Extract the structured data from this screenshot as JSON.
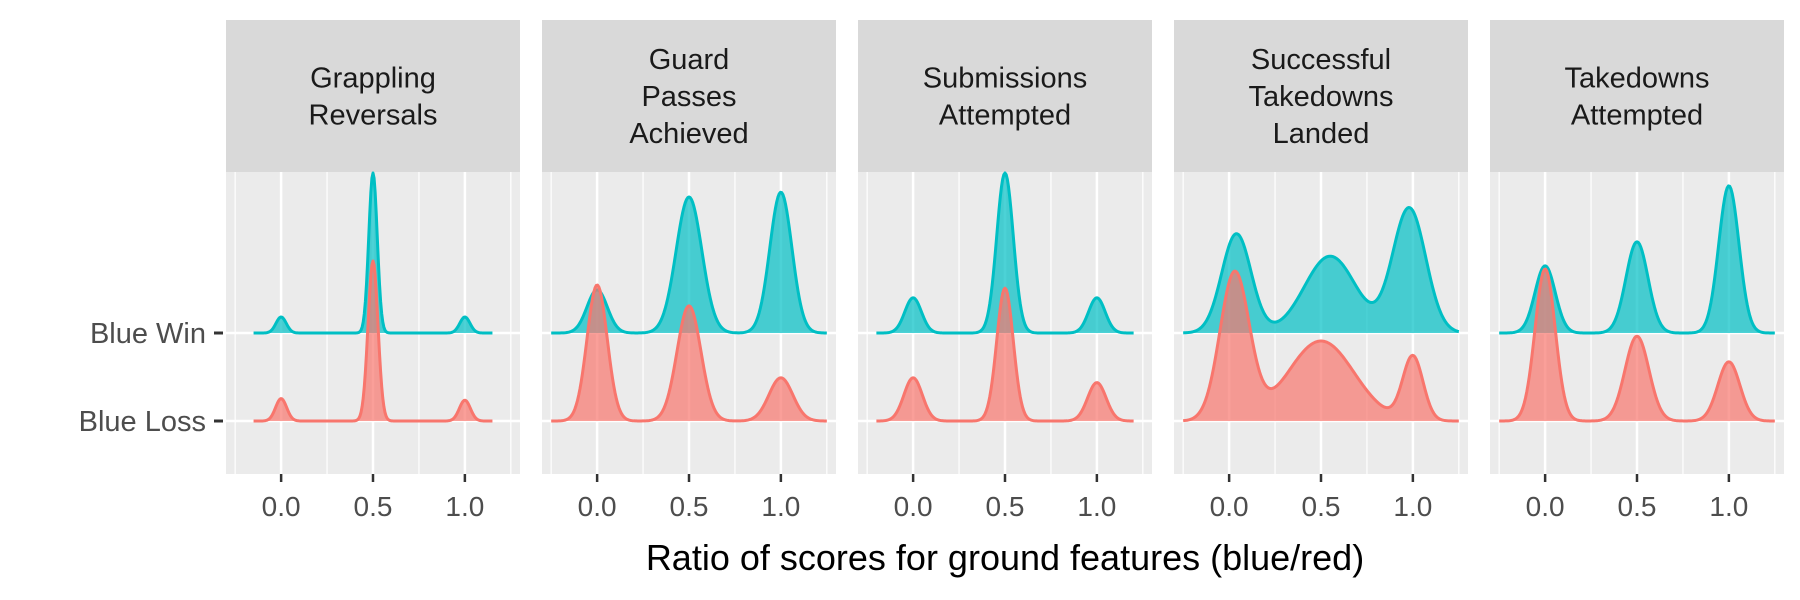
{
  "chart_data": {
    "type": "ridgeline",
    "xlabel": "Ratio of scores for ground features (blue/red)",
    "ylabel": "",
    "xlim": [
      -0.3,
      1.3
    ],
    "xticks": [
      0.0,
      0.5,
      1.0
    ],
    "xtick_labels": [
      "0.0",
      "0.5",
      "1.0"
    ],
    "rows": [
      "Blue Win",
      "Blue Loss"
    ],
    "colors": {
      "Blue Win": "#00BFC4",
      "Blue Loss": "#F8766D"
    },
    "grid": true,
    "legend": "none",
    "panels": [
      {
        "title": "Grappling\nReversals",
        "range": [
          -0.15,
          1.15
        ],
        "series": [
          {
            "name": "Blue Win",
            "components": [
              [
                0.0,
                0.028,
                0.1
              ],
              [
                0.5,
                0.023,
                1.0
              ],
              [
                1.0,
                0.028,
                0.1
              ]
            ]
          },
          {
            "name": "Blue Loss",
            "components": [
              [
                0.0,
                0.03,
                0.14
              ],
              [
                0.5,
                0.027,
                1.0
              ],
              [
                1.0,
                0.03,
                0.13
              ]
            ]
          }
        ]
      },
      {
        "title": "Guard\nPasses\nAchieved",
        "range": [
          -0.25,
          1.25
        ],
        "series": [
          {
            "name": "Blue Win",
            "components": [
              [
                0.0,
                0.055,
                0.27
              ],
              [
                0.5,
                0.07,
                0.85
              ],
              [
                1.0,
                0.06,
                0.88
              ]
            ]
          },
          {
            "name": "Blue Loss",
            "components": [
              [
                0.0,
                0.055,
                0.85
              ],
              [
                0.5,
                0.065,
                0.72
              ],
              [
                1.0,
                0.065,
                0.27
              ]
            ]
          }
        ]
      },
      {
        "title": "Submissions\nAttempted",
        "range": [
          -0.2,
          1.2
        ],
        "series": [
          {
            "name": "Blue Win",
            "components": [
              [
                0.0,
                0.045,
                0.22
              ],
              [
                0.5,
                0.045,
                1.0
              ],
              [
                1.0,
                0.045,
                0.22
              ]
            ]
          },
          {
            "name": "Blue Loss",
            "components": [
              [
                0.0,
                0.05,
                0.27
              ],
              [
                0.5,
                0.045,
                0.83
              ],
              [
                1.0,
                0.05,
                0.24
              ]
            ]
          }
        ]
      },
      {
        "title": "Successful\nTakedowns\nLanded",
        "range": [
          -0.25,
          1.25
        ],
        "series": [
          {
            "name": "Blue Win",
            "components": [
              [
                0.04,
                0.08,
                0.62
              ],
              [
                0.55,
                0.14,
                0.48
              ],
              [
                0.98,
                0.09,
                0.78
              ]
            ]
          },
          {
            "name": "Blue Loss",
            "components": [
              [
                0.03,
                0.08,
                0.92
              ],
              [
                0.5,
                0.18,
                0.5
              ],
              [
                1.0,
                0.055,
                0.4
              ]
            ]
          }
        ]
      },
      {
        "title": "Takedowns\nAttempted",
        "range": [
          -0.25,
          1.25
        ],
        "series": [
          {
            "name": "Blue Win",
            "components": [
              [
                0.0,
                0.055,
                0.42
              ],
              [
                0.5,
                0.06,
                0.57
              ],
              [
                1.0,
                0.055,
                0.92
              ]
            ]
          },
          {
            "name": "Blue Loss",
            "components": [
              [
                0.0,
                0.055,
                0.95
              ],
              [
                0.5,
                0.065,
                0.53
              ],
              [
                1.0,
                0.06,
                0.37
              ]
            ]
          }
        ]
      }
    ]
  }
}
